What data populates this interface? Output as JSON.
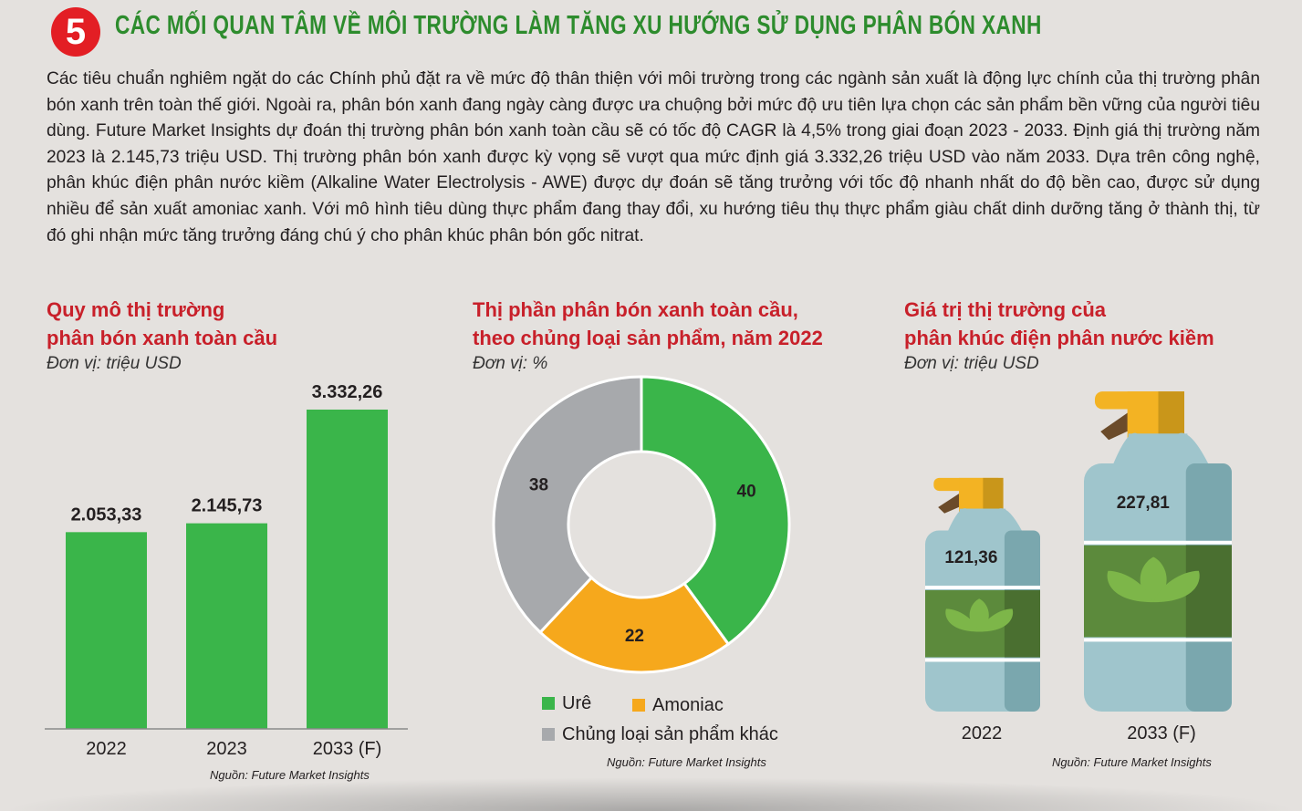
{
  "header": {
    "number": "5",
    "title": "CÁC MỐI QUAN TÂM VỀ MÔI TRƯỜNG LÀM TĂNG XU HƯỚNG SỬ DỤNG PHÂN BÓN XANH",
    "intro": "Các tiêu chuẩn nghiêm ngặt do các Chính phủ đặt ra về mức độ thân thiện với môi trường trong các ngành sản xuất là động lực chính của thị trường phân bón xanh trên toàn thế giới. Ngoài ra, phân bón xanh đang ngày càng được ưa chuộng bởi mức độ ưu tiên lựa chọn các sản phẩm bền vững của người tiêu dùng. Future Market Insights dự đoán thị trường phân bón xanh toàn cầu sẽ có tốc độ CAGR là 4,5% trong giai đoạn 2023 - 2033. Định giá thị trường năm 2023 là 2.145,73 triệu USD. Thị trường phân bón xanh được kỳ vọng sẽ vượt qua mức định giá 3.332,26 triệu USD vào năm 2033. Dựa trên công nghệ, phân khúc điện phân nước kiềm (Alkaline Water Electrolysis - AWE) được dự đoán sẽ tăng trưởng với tốc độ nhanh nhất do độ bền cao, được sử dụng nhiều để sản xuất amoniac xanh. Với mô hình tiêu dùng thực phẩm đang thay đổi, xu hướng tiêu thụ thực phẩm giàu chất dinh dưỡng tăng ở thành thị, từ đó ghi nhận mức tăng trưởng đáng chú ý cho phân khúc phân bón gốc nitrat."
  },
  "chart_data": [
    {
      "type": "bar",
      "title_line1": "Quy mô thị trường",
      "title_line2": "phân bón xanh toàn cầu",
      "unit": "Đơn vị: triệu USD",
      "categories": [
        "2022",
        "2023",
        "2033 (F)"
      ],
      "values": [
        2053.33,
        2145.73,
        3332.26
      ],
      "value_labels": [
        "2.053,33",
        "2.145,73",
        "3.332,26"
      ],
      "color": "#3ab54a",
      "ylim": [
        0,
        3500
      ],
      "source": "Nguồn: Future Market Insights"
    },
    {
      "type": "pie",
      "title_line1": "Thị phần phân bón xanh toàn cầu,",
      "title_line2": "theo chủng loại sản phẩm, năm 2022",
      "unit": "Đơn vị: %",
      "slices": [
        {
          "label": "Urê",
          "value": 40,
          "color": "#3ab54a"
        },
        {
          "label": "Amoniac",
          "value": 22,
          "color": "#f6a81c"
        },
        {
          "label": "Chủng loại sản phẩm khác",
          "value": 38,
          "color": "#a7a9ac"
        }
      ],
      "source": "Nguồn: Future Market Insights"
    },
    {
      "type": "bar",
      "title_line1": "Giá trị thị trường của",
      "title_line2": "phân khúc điện phân nước kiềm",
      "unit": "Đơn vị: triệu USD",
      "categories": [
        "2022",
        "2033 (F)"
      ],
      "values": [
        121.36,
        227.81
      ],
      "value_labels": [
        "121,36",
        "227,81"
      ],
      "source": "Nguồn: Future Market Insights"
    }
  ],
  "colors": {
    "accent_red": "#c8202a",
    "heading_green": "#2d8c2d",
    "bottle_body": "#9fc5cc",
    "bottle_shadow": "#7aa7ae",
    "bottle_label": "#5c8a3c",
    "trigger": "#f3b323"
  },
  "icons": [
    "spray-bottle-icon",
    "leaf-icon"
  ]
}
